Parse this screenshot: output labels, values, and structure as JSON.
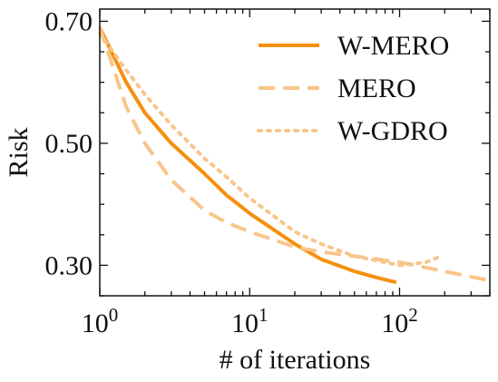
{
  "chart_data": {
    "type": "line",
    "title": "",
    "xlabel": "# of iterations",
    "ylabel": "Risk",
    "xscale": "log",
    "xlim": [
      1,
      400
    ],
    "ylim": [
      0.25,
      0.72
    ],
    "grid": false,
    "legend_position": "top-right",
    "x_ticks": [
      {
        "value": 1,
        "base": "10",
        "exp": "0"
      },
      {
        "value": 10,
        "base": "10",
        "exp": "1"
      },
      {
        "value": 100,
        "base": "10",
        "exp": "2"
      }
    ],
    "y_ticks": [
      {
        "value": 0.3,
        "label": "0.30"
      },
      {
        "value": 0.5,
        "label": "0.50"
      },
      {
        "value": 0.7,
        "label": "0.70"
      }
    ],
    "series": [
      {
        "name": "W-MERO",
        "color": "#f5900f",
        "style": "solid",
        "x": [
          1,
          1.5,
          2,
          3,
          5,
          7,
          10,
          20,
          30,
          50,
          70,
          95
        ],
        "y": [
          0.69,
          0.6,
          0.55,
          0.5,
          0.45,
          0.415,
          0.385,
          0.335,
          0.31,
          0.29,
          0.28,
          0.272
        ]
      },
      {
        "name": "MERO",
        "color": "#f8c58a",
        "style": "dashed",
        "x": [
          1,
          1.5,
          2,
          3,
          5,
          7,
          10,
          20,
          30,
          50,
          100,
          200,
          400
        ],
        "y": [
          0.69,
          0.56,
          0.5,
          0.44,
          0.39,
          0.37,
          0.355,
          0.33,
          0.322,
          0.315,
          0.305,
          0.29,
          0.275
        ]
      },
      {
        "name": "W-GDRO",
        "color": "#f8c58a",
        "style": "dotted",
        "x": [
          1,
          1.5,
          2,
          3,
          5,
          7,
          10,
          20,
          30,
          50,
          80,
          100,
          150,
          190
        ],
        "y": [
          0.68,
          0.62,
          0.58,
          0.53,
          0.475,
          0.445,
          0.41,
          0.355,
          0.335,
          0.315,
          0.305,
          0.3,
          0.305,
          0.315
        ]
      }
    ]
  }
}
